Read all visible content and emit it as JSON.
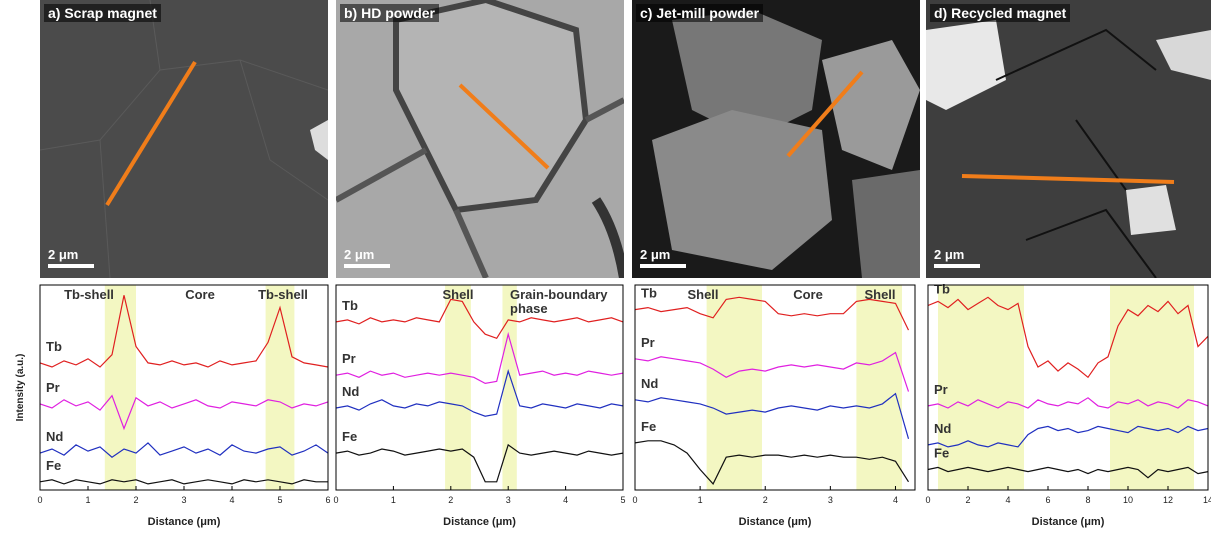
{
  "panels": [
    {
      "label": "a) Scrap magnet",
      "scale": "2 μm"
    },
    {
      "label": "b) HD powder",
      "scale": "2 μm"
    },
    {
      "label": "c) Jet-mill powder",
      "scale": "2 μm"
    },
    {
      "label": "d) Recycled magnet",
      "scale": "2 μm"
    }
  ],
  "chart_data": [
    {
      "type": "line",
      "ylabel": "Intensity (a.u.)",
      "xlabel": "Distance (μm)",
      "xlim": [
        0,
        6
      ],
      "xticks": [
        0,
        1,
        2,
        3,
        4,
        5,
        6
      ],
      "ylim": [
        0,
        100
      ],
      "highlights": [
        [
          1.35,
          2.0
        ],
        [
          4.7,
          5.3
        ]
      ],
      "annotations": [
        "Tb-shell",
        "Core",
        "Tb-shell"
      ],
      "x": [
        0,
        0.25,
        0.5,
        0.75,
        1,
        1.25,
        1.5,
        1.75,
        2,
        2.25,
        2.5,
        2.75,
        3,
        3.25,
        3.5,
        3.75,
        4,
        4.25,
        4.5,
        4.75,
        5,
        5.25,
        5.5,
        5.75,
        6
      ],
      "series": [
        {
          "name": "Tb",
          "color": "#e02020",
          "values": [
            62,
            60,
            63,
            61,
            64,
            60,
            66,
            95,
            70,
            62,
            61,
            63,
            61,
            62,
            60,
            63,
            61,
            62,
            63,
            72,
            89,
            65,
            62,
            61,
            60
          ]
        },
        {
          "name": "Pr",
          "color": "#e020e0",
          "values": [
            42,
            40,
            44,
            41,
            43,
            39,
            46,
            30,
            45,
            41,
            43,
            40,
            42,
            44,
            41,
            40,
            43,
            42,
            41,
            44,
            43,
            40,
            42,
            41,
            43
          ]
        },
        {
          "name": "Nd",
          "color": "#2030c0",
          "values": [
            18,
            20,
            17,
            22,
            19,
            21,
            16,
            20,
            18,
            23,
            17,
            19,
            21,
            18,
            20,
            17,
            22,
            19,
            18,
            20,
            21,
            17,
            19,
            22,
            18
          ]
        },
        {
          "name": "Fe",
          "color": "#111111",
          "values": [
            4,
            5,
            3,
            5,
            4,
            3,
            5,
            4,
            5,
            3,
            4,
            5,
            3,
            4,
            5,
            4,
            3,
            5,
            4,
            5,
            4,
            3,
            5,
            4,
            4
          ]
        }
      ]
    },
    {
      "type": "line",
      "xlabel": "Distance (μm)",
      "xlim": [
        0,
        5
      ],
      "xticks": [
        0,
        1,
        2,
        3,
        4,
        5
      ],
      "ylim": [
        0,
        100
      ],
      "highlights": [
        [
          1.9,
          2.35
        ],
        [
          2.9,
          3.15
        ]
      ],
      "annotations": [
        "Shell",
        "Grain-boundary phase"
      ],
      "x": [
        0,
        0.2,
        0.4,
        0.6,
        0.8,
        1,
        1.2,
        1.4,
        1.6,
        1.8,
        2,
        2.2,
        2.4,
        2.6,
        2.8,
        3,
        3.2,
        3.4,
        3.6,
        3.8,
        4,
        4.2,
        4.4,
        4.6,
        4.8,
        5
      ],
      "series": [
        {
          "name": "Tb",
          "color": "#e02020",
          "values": [
            82,
            83,
            81,
            84,
            82,
            83,
            82,
            84,
            83,
            82,
            93,
            92,
            82,
            76,
            74,
            83,
            82,
            84,
            83,
            82,
            83,
            84,
            82,
            83,
            84,
            82
          ]
        },
        {
          "name": "Pr",
          "color": "#e020e0",
          "values": [
            56,
            57,
            55,
            58,
            56,
            57,
            55,
            56,
            57,
            56,
            57,
            56,
            55,
            52,
            53,
            76,
            56,
            57,
            58,
            56,
            57,
            56,
            58,
            57,
            56,
            57
          ]
        },
        {
          "name": "Nd",
          "color": "#2030c0",
          "values": [
            40,
            41,
            39,
            42,
            44,
            41,
            40,
            42,
            41,
            43,
            42,
            41,
            38,
            36,
            37,
            58,
            41,
            40,
            42,
            41,
            40,
            42,
            41,
            40,
            42,
            41
          ]
        },
        {
          "name": "Fe",
          "color": "#111111",
          "values": [
            18,
            19,
            17,
            18,
            20,
            19,
            17,
            18,
            19,
            20,
            19,
            20,
            16,
            4,
            4,
            22,
            18,
            17,
            18,
            19,
            18,
            17,
            19,
            18,
            17,
            18
          ]
        }
      ]
    },
    {
      "type": "line",
      "xlabel": "Distance (μm)",
      "xlim": [
        0,
        4.3
      ],
      "xticks": [
        0,
        1,
        2,
        3,
        4
      ],
      "ylim": [
        0,
        100
      ],
      "highlights": [
        [
          1.1,
          1.95
        ],
        [
          3.4,
          4.1
        ]
      ],
      "annotations": [
        "Shell",
        "Core",
        "Shell"
      ],
      "x": [
        0,
        0.2,
        0.4,
        0.6,
        0.8,
        1,
        1.2,
        1.4,
        1.6,
        1.8,
        2,
        2.2,
        2.4,
        2.6,
        2.8,
        3,
        3.2,
        3.4,
        3.6,
        3.8,
        4,
        4.2
      ],
      "series": [
        {
          "name": "Tb",
          "color": "#e02020",
          "values": [
            88,
            89,
            87,
            88,
            89,
            86,
            84,
            93,
            94,
            93,
            92,
            86,
            85,
            86,
            85,
            86,
            86,
            92,
            93,
            92,
            91,
            78
          ]
        },
        {
          "name": "Pr",
          "color": "#e020e0",
          "values": [
            64,
            63,
            65,
            64,
            63,
            62,
            59,
            55,
            58,
            59,
            58,
            60,
            61,
            60,
            61,
            60,
            59,
            62,
            61,
            63,
            67,
            48
          ]
        },
        {
          "name": "Nd",
          "color": "#2030c0",
          "values": [
            44,
            43,
            45,
            44,
            43,
            42,
            40,
            37,
            38,
            39,
            38,
            40,
            41,
            40,
            39,
            41,
            40,
            41,
            40,
            42,
            47,
            25
          ]
        },
        {
          "name": "Fe",
          "color": "#111111",
          "values": [
            23,
            24,
            24,
            22,
            18,
            10,
            3,
            16,
            17,
            16,
            17,
            17,
            16,
            17,
            16,
            17,
            16,
            16,
            15,
            16,
            14,
            4
          ]
        }
      ]
    },
    {
      "type": "line",
      "xlabel": "Distance (μm)",
      "xlim": [
        0,
        14
      ],
      "xticks": [
        0,
        2,
        4,
        6,
        8,
        10,
        12,
        14
      ],
      "ylim": [
        0,
        100
      ],
      "highlights": [
        [
          0.5,
          4.8
        ],
        [
          9.1,
          13.3
        ]
      ],
      "x": [
        0,
        0.5,
        1,
        1.5,
        2,
        2.5,
        3,
        3.5,
        4,
        4.5,
        5,
        5.5,
        6,
        6.5,
        7,
        7.5,
        8,
        8.5,
        9,
        9.5,
        10,
        10.5,
        11,
        11.5,
        12,
        12.5,
        13,
        13.5,
        14
      ],
      "series": [
        {
          "name": "Tb",
          "color": "#e02020",
          "values": [
            90,
            92,
            89,
            93,
            88,
            91,
            94,
            90,
            88,
            91,
            70,
            60,
            63,
            58,
            62,
            59,
            55,
            62,
            65,
            80,
            88,
            85,
            90,
            87,
            92,
            86,
            90,
            70,
            75
          ]
        },
        {
          "name": "Pr",
          "color": "#e020e0",
          "values": [
            41,
            42,
            40,
            43,
            41,
            44,
            42,
            40,
            43,
            42,
            40,
            44,
            42,
            41,
            43,
            42,
            45,
            41,
            40,
            43,
            42,
            44,
            41,
            43,
            42,
            40,
            44,
            43,
            41
          ]
        },
        {
          "name": "Nd",
          "color": "#2030c0",
          "values": [
            22,
            23,
            21,
            22,
            24,
            22,
            21,
            23,
            22,
            21,
            27,
            30,
            31,
            29,
            30,
            28,
            29,
            31,
            30,
            29,
            28,
            31,
            30,
            29,
            30,
            28,
            31,
            29,
            30
          ]
        },
        {
          "name": "Fe",
          "color": "#111111",
          "values": [
            10,
            11,
            9,
            10,
            11,
            10,
            9,
            10,
            11,
            10,
            9,
            10,
            11,
            10,
            9,
            10,
            8,
            10,
            9,
            10,
            11,
            10,
            6,
            10,
            9,
            10,
            11,
            8,
            9
          ]
        }
      ]
    }
  ]
}
